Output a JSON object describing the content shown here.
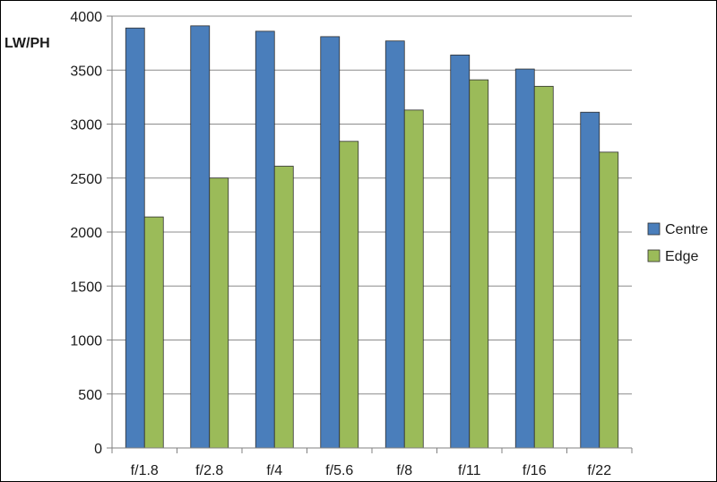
{
  "chart_data": {
    "type": "bar",
    "ylabel": "LW/PH",
    "xlabel": "",
    "title": "",
    "categories": [
      "f/1.8",
      "f/2.8",
      "f/4",
      "f/5.6",
      "f/8",
      "f/11",
      "f/16",
      "f/22"
    ],
    "series": [
      {
        "name": "Centre",
        "color": "#4a7ebb",
        "values": [
          3890,
          3910,
          3860,
          3810,
          3770,
          3640,
          3510,
          3110
        ]
      },
      {
        "name": "Edge",
        "color": "#9bbb59",
        "values": [
          2140,
          2500,
          2610,
          2840,
          3130,
          3410,
          3350,
          2740
        ]
      }
    ],
    "ylim": [
      0,
      4000
    ],
    "yticks": [
      0,
      500,
      1000,
      1500,
      2000,
      2500,
      3000,
      3500,
      4000
    ],
    "grid": true,
    "legend_position": "right"
  }
}
